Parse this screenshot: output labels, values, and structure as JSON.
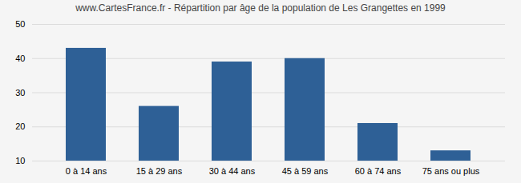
{
  "chart_data": {
    "type": "bar",
    "title": "www.CartesFrance.fr - Répartition par âge de la population de Les Grangettes en 1999",
    "categories": [
      "0 à 14 ans",
      "15 à 29 ans",
      "30 à 44 ans",
      "45 à 59 ans",
      "60 à 74 ans",
      "75 ans ou plus"
    ],
    "values": [
      43,
      26,
      39,
      40,
      21,
      13
    ],
    "color": "#2e6096",
    "ylim": [
      10,
      50
    ],
    "yticks": [
      10,
      20,
      30,
      40,
      50
    ],
    "grid": true
  }
}
